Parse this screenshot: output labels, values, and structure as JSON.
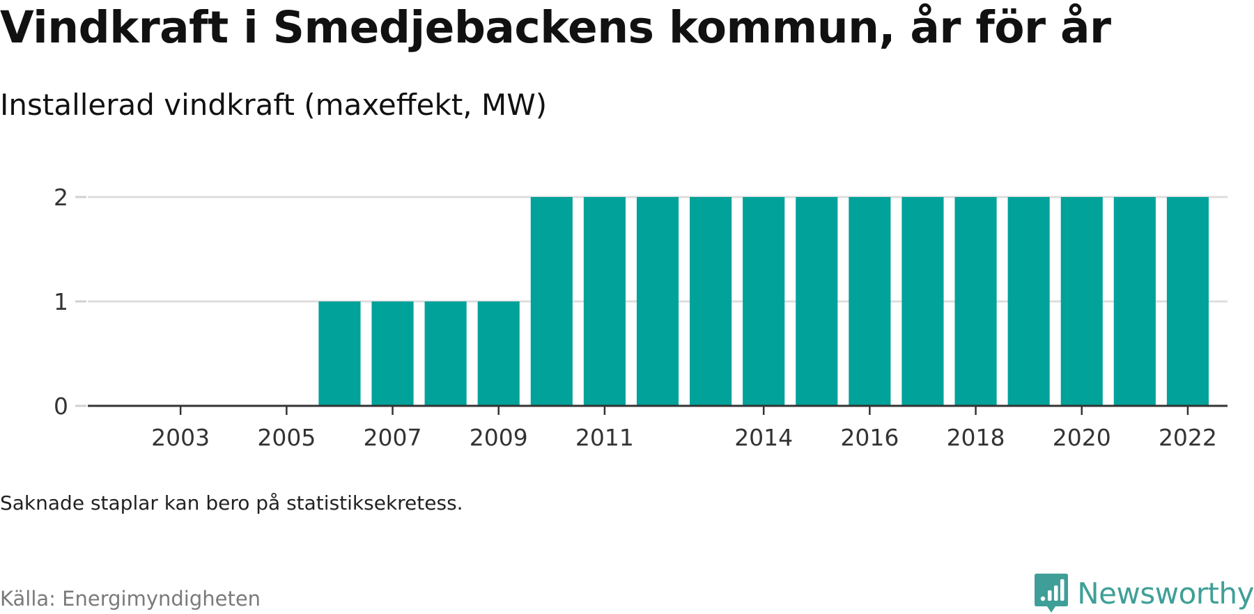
{
  "header": {
    "title": "Vindkraft i Smedjebackens kommun, år för år",
    "subtitle": "Installerad vindkraft (maxeffekt, MW)"
  },
  "chart_data": {
    "type": "bar",
    "title": "Vindkraft i Smedjebackens kommun, år för år",
    "subtitle": "Installerad vindkraft (maxeffekt, MW)",
    "xlabel": "",
    "ylabel": "",
    "categories": [
      "2002",
      "2003",
      "2004",
      "2005",
      "2006",
      "2007",
      "2008",
      "2009",
      "2010",
      "2011",
      "2012",
      "2013",
      "2014",
      "2015",
      "2016",
      "2017",
      "2018",
      "2019",
      "2020",
      "2021",
      "2022"
    ],
    "values": [
      0,
      0,
      0,
      0,
      1,
      1,
      1,
      1,
      2,
      2,
      2,
      2,
      2,
      2,
      2,
      2,
      2,
      2,
      2,
      2,
      2
    ],
    "x_tick_labels": [
      "2003",
      "2005",
      "2007",
      "2009",
      "2011",
      "2014",
      "2016",
      "2018",
      "2020",
      "2022"
    ],
    "y_ticks": [
      0,
      1,
      2
    ],
    "ylim": [
      0,
      2
    ],
    "grid": true,
    "legend": "none",
    "bar_color": "#00a29a",
    "grid_color": "#dddddd",
    "axis_color": "#333333"
  },
  "footer": {
    "note": "Saknade staplar kan bero på statistiksekretess.",
    "source": "Källa: Energimyndigheten",
    "brand": "Newsworthy",
    "brand_icon": "bar-chart-speech-bubble-icon",
    "brand_color": "#3f9f98"
  }
}
